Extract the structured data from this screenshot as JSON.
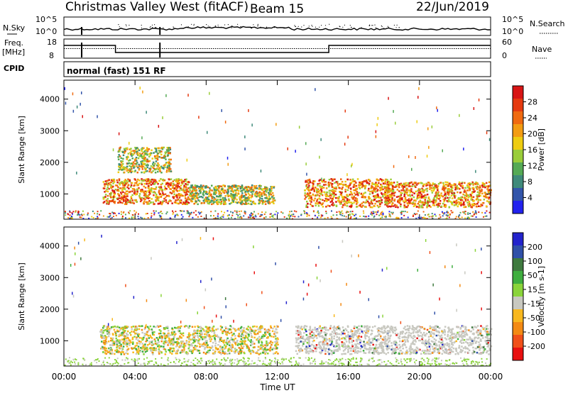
{
  "header": {
    "title": "Christmas Valley West (fitACF)",
    "beam": "Beam 15",
    "date": "22/Jun/2019"
  },
  "panels": {
    "nsky": {
      "label": "N.Sky",
      "tick_top": "10^5",
      "tick_bottom": "10^0",
      "right_label": "N.Search",
      "right_tick_top": "10^5",
      "right_tick_bottom": "10^0"
    },
    "freq": {
      "label_line1": "Freq.",
      "label_line2": "[MHz]",
      "tick_top": "18",
      "tick_bottom": "8",
      "right_label": "Nave",
      "right_tick_top": "60",
      "right_tick_bottom": "0"
    },
    "cpid": {
      "label": "CPID",
      "text": "normal (fast) 151 RF"
    }
  },
  "colors": {
    "power": [
      "#2222ee",
      "#3355aa",
      "#3f8a7a",
      "#55aa55",
      "#9acd3a",
      "#eecc11",
      "#f39c12",
      "#f06a10",
      "#e53a10",
      "#d81515"
    ],
    "velocity": [
      "#e81010",
      "#f0501a",
      "#f38a14",
      "#f8b81f",
      "#c8c8c0",
      "#8ad43a",
      "#3fae3f",
      "#3f7a3f",
      "#3050a8",
      "#2323cc"
    ]
  },
  "chart_data": [
    {
      "type": "heatmap",
      "quantity": "Power",
      "ylabel": "Slant Range [km]",
      "xlabel": "",
      "x_range_hours": [
        0,
        24
      ],
      "ylim": [
        200,
        4600
      ],
      "y_ticks": [
        1000,
        2000,
        3000,
        4000
      ],
      "colorbar": {
        "label": "Power [dB]",
        "ticks": [
          "4",
          "8",
          "12",
          "16",
          "20",
          "24",
          "28"
        ]
      },
      "regions": [
        {
          "start": "02:10",
          "end": "07:00",
          "range_km": [
            700,
            1500
          ],
          "level": "strong"
        },
        {
          "start": "07:00",
          "end": "11:50",
          "range_km": [
            700,
            1300
          ],
          "level": "moderate"
        },
        {
          "start": "03:00",
          "end": "06:00",
          "range_km": [
            1700,
            2500
          ],
          "level": "moderate"
        },
        {
          "start": "13:30",
          "end": "18:30",
          "range_km": [
            600,
            1500
          ],
          "level": "strong"
        },
        {
          "start": "18:00",
          "end": "24:00",
          "range_km": [
            600,
            1400
          ],
          "level": "strong"
        }
      ]
    },
    {
      "type": "heatmap",
      "quantity": "Velocity",
      "ylabel": "Slant Range [km]",
      "xlabel": "Time UT",
      "x_ticks": [
        "00:00",
        "04:00",
        "08:00",
        "12:00",
        "16:00",
        "20:00",
        "00:00"
      ],
      "ylim": [
        200,
        4600
      ],
      "y_ticks": [
        1000,
        2000,
        3000,
        4000
      ],
      "colorbar": {
        "label": "Velocity [m s-1]",
        "ticks": [
          "200",
          "100",
          "50",
          "15",
          "-15",
          "-50",
          "-100",
          "-200"
        ]
      },
      "regions": [
        {
          "start": "02:00",
          "end": "12:00",
          "range_km": [
            600,
            1500
          ],
          "level": "mixed (-50 to 50)"
        },
        {
          "start": "13:00",
          "end": "24:00",
          "range_km": [
            600,
            1500
          ],
          "level": "near zero"
        }
      ]
    }
  ]
}
